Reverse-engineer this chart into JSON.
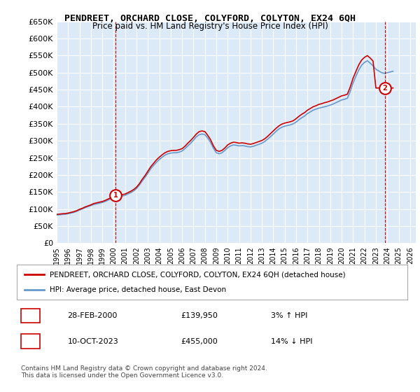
{
  "title": "PENDREET, ORCHARD CLOSE, COLYFORD, COLYTON, EX24 6QH",
  "subtitle": "Price paid vs. HM Land Registry's House Price Index (HPI)",
  "ylabel_ticks": [
    "£0",
    "£50K",
    "£100K",
    "£150K",
    "£200K",
    "£250K",
    "£300K",
    "£350K",
    "£400K",
    "£450K",
    "£500K",
    "£550K",
    "£600K",
    "£650K"
  ],
  "ytick_values": [
    0,
    50000,
    100000,
    150000,
    200000,
    250000,
    300000,
    350000,
    400000,
    450000,
    500000,
    550000,
    600000,
    650000
  ],
  "ylim": [
    0,
    650000
  ],
  "xlim_start": 1995.0,
  "xlim_end": 2026.5,
  "background_color": "#dce9f7",
  "plot_bg_color": "#dce9f7",
  "grid_color": "#ffffff",
  "red_line_color": "#cc0000",
  "blue_line_color": "#6699cc",
  "transaction1": {
    "date_num": 2000.16,
    "price": 139950,
    "label": "1",
    "date_str": "28-FEB-2000",
    "price_str": "£139,950",
    "pct_str": "3% ↑ HPI"
  },
  "transaction2": {
    "date_num": 2023.78,
    "price": 455000,
    "label": "2",
    "date_str": "10-OCT-2023",
    "price_str": "£455,000",
    "pct_str": "14% ↓ HPI"
  },
  "legend_line1": "PENDREET, ORCHARD CLOSE, COLYFORD, COLYTON, EX24 6QH (detached house)",
  "legend_line2": "HPI: Average price, detached house, East Devon",
  "footnote": "Contains HM Land Registry data © Crown copyright and database right 2024.\nThis data is licensed under the Open Government Licence v3.0.",
  "hpi_data": {
    "years": [
      1995.0,
      1995.25,
      1995.5,
      1995.75,
      1996.0,
      1996.25,
      1996.5,
      1996.75,
      1997.0,
      1997.25,
      1997.5,
      1997.75,
      1998.0,
      1998.25,
      1998.5,
      1998.75,
      1999.0,
      1999.25,
      1999.5,
      1999.75,
      2000.0,
      2000.25,
      2000.5,
      2000.75,
      2001.0,
      2001.25,
      2001.5,
      2001.75,
      2002.0,
      2002.25,
      2002.5,
      2002.75,
      2003.0,
      2003.25,
      2003.5,
      2003.75,
      2004.0,
      2004.25,
      2004.5,
      2004.75,
      2005.0,
      2005.25,
      2005.5,
      2005.75,
      2006.0,
      2006.25,
      2006.5,
      2006.75,
      2007.0,
      2007.25,
      2007.5,
      2007.75,
      2008.0,
      2008.25,
      2008.5,
      2008.75,
      2009.0,
      2009.25,
      2009.5,
      2009.75,
      2010.0,
      2010.25,
      2010.5,
      2010.75,
      2011.0,
      2011.25,
      2011.5,
      2011.75,
      2012.0,
      2012.25,
      2012.5,
      2012.75,
      2013.0,
      2013.25,
      2013.5,
      2013.75,
      2014.0,
      2014.25,
      2014.5,
      2014.75,
      2015.0,
      2015.25,
      2015.5,
      2015.75,
      2016.0,
      2016.25,
      2016.5,
      2016.75,
      2017.0,
      2017.25,
      2017.5,
      2017.75,
      2018.0,
      2018.25,
      2018.5,
      2018.75,
      2019.0,
      2019.25,
      2019.5,
      2019.75,
      2020.0,
      2020.25,
      2020.5,
      2020.75,
      2021.0,
      2021.25,
      2021.5,
      2021.75,
      2022.0,
      2022.25,
      2022.5,
      2022.75,
      2023.0,
      2023.25,
      2023.5,
      2023.75,
      2024.0,
      2024.25,
      2024.5
    ],
    "values": [
      82000,
      83000,
      84000,
      84500,
      86000,
      88000,
      90000,
      93000,
      97000,
      100000,
      104000,
      107000,
      110000,
      113000,
      115000,
      117000,
      119000,
      122000,
      126000,
      130000,
      135000,
      136000,
      137000,
      138000,
      140000,
      144000,
      148000,
      153000,
      160000,
      170000,
      182000,
      193000,
      205000,
      218000,
      228000,
      237000,
      245000,
      252000,
      258000,
      262000,
      264000,
      265000,
      265000,
      267000,
      270000,
      277000,
      285000,
      293000,
      302000,
      312000,
      318000,
      320000,
      318000,
      308000,
      295000,
      278000,
      265000,
      262000,
      265000,
      272000,
      280000,
      285000,
      288000,
      287000,
      285000,
      286000,
      285000,
      283000,
      282000,
      284000,
      287000,
      290000,
      293000,
      298000,
      305000,
      312000,
      320000,
      328000,
      335000,
      340000,
      343000,
      345000,
      347000,
      350000,
      355000,
      362000,
      368000,
      373000,
      380000,
      385000,
      390000,
      393000,
      396000,
      398000,
      400000,
      402000,
      405000,
      408000,
      412000,
      416000,
      420000,
      422000,
      425000,
      445000,
      470000,
      490000,
      508000,
      522000,
      530000,
      535000,
      528000,
      520000,
      510000,
      505000,
      500000,
      498000,
      500000,
      502000,
      504000
    ]
  },
  "price_paid_data": {
    "years": [
      1995.0,
      1995.25,
      1995.5,
      1995.75,
      1996.0,
      1996.25,
      1996.5,
      1996.75,
      1997.0,
      1997.25,
      1997.5,
      1997.75,
      1998.0,
      1998.25,
      1998.5,
      1998.75,
      1999.0,
      1999.25,
      1999.5,
      1999.75,
      2000.0,
      2000.25,
      2000.5,
      2000.75,
      2001.0,
      2001.25,
      2001.5,
      2001.75,
      2002.0,
      2002.25,
      2002.5,
      2002.75,
      2003.0,
      2003.25,
      2003.5,
      2003.75,
      2004.0,
      2004.25,
      2004.5,
      2004.75,
      2005.0,
      2005.25,
      2005.5,
      2005.75,
      2006.0,
      2006.25,
      2006.5,
      2006.75,
      2007.0,
      2007.25,
      2007.5,
      2007.75,
      2008.0,
      2008.25,
      2008.5,
      2008.75,
      2009.0,
      2009.25,
      2009.5,
      2009.75,
      2010.0,
      2010.25,
      2010.5,
      2010.75,
      2011.0,
      2011.25,
      2011.5,
      2011.75,
      2012.0,
      2012.25,
      2012.5,
      2012.75,
      2013.0,
      2013.25,
      2013.5,
      2013.75,
      2014.0,
      2014.25,
      2014.5,
      2014.75,
      2015.0,
      2015.25,
      2015.5,
      2015.75,
      2016.0,
      2016.25,
      2016.5,
      2016.75,
      2017.0,
      2017.25,
      2017.5,
      2017.75,
      2018.0,
      2018.25,
      2018.5,
      2018.75,
      2019.0,
      2019.25,
      2019.5,
      2019.75,
      2020.0,
      2020.25,
      2020.5,
      2020.75,
      2021.0,
      2021.25,
      2021.5,
      2021.75,
      2022.0,
      2022.25,
      2022.5,
      2022.75,
      2023.0,
      2023.25,
      2023.5,
      2023.75,
      2024.0,
      2024.25,
      2024.5
    ],
    "values": [
      84000,
      85000,
      86000,
      86500,
      88000,
      90000,
      92000,
      95000,
      99000,
      102000,
      106000,
      109000,
      112000,
      116000,
      118000,
      120000,
      122000,
      125000,
      129000,
      133000,
      139950,
      140500,
      141000,
      142000,
      144000,
      148000,
      152000,
      157000,
      164000,
      174000,
      187000,
      198000,
      211000,
      224000,
      234000,
      244000,
      252000,
      259000,
      265000,
      269000,
      271000,
      272000,
      272000,
      274000,
      277000,
      284000,
      293000,
      301000,
      310000,
      320000,
      327000,
      329000,
      327000,
      316000,
      303000,
      285000,
      272000,
      269000,
      272000,
      279000,
      288000,
      293000,
      296000,
      295000,
      293000,
      294000,
      293000,
      291000,
      290000,
      292000,
      295000,
      298000,
      301000,
      306000,
      313000,
      321000,
      329000,
      337000,
      344000,
      349000,
      352000,
      354000,
      356000,
      359000,
      365000,
      372000,
      378000,
      383000,
      390000,
      395000,
      400000,
      403000,
      407000,
      409000,
      412000,
      414000,
      417000,
      420000,
      424000,
      428000,
      432000,
      434000,
      437000,
      458000,
      484000,
      504000,
      523000,
      537000,
      545000,
      550000,
      543000,
      534000,
      455000,
      455000,
      455000,
      455000,
      455000,
      455000,
      455000
    ]
  }
}
